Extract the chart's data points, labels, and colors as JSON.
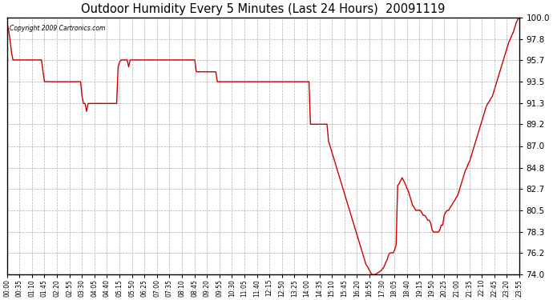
{
  "title": "Outdoor Humidity Every 5 Minutes (Last 24 Hours)  20091119",
  "copyright": "Copyright 2009 Cartronics.com",
  "line_color": "#cc0000",
  "background_color": "#ffffff",
  "grid_color": "#aaaaaa",
  "ylim": [
    74.0,
    100.0
  ],
  "yticks": [
    74.0,
    76.2,
    78.3,
    80.5,
    82.7,
    84.8,
    87.0,
    89.2,
    91.3,
    93.5,
    95.7,
    97.8,
    100.0
  ],
  "xtick_labels": [
    "00:00",
    "00:35",
    "01:10",
    "01:45",
    "02:20",
    "02:55",
    "03:30",
    "04:05",
    "04:40",
    "05:15",
    "05:50",
    "06:25",
    "07:00",
    "07:35",
    "08:10",
    "08:45",
    "09:20",
    "09:55",
    "10:30",
    "11:05",
    "11:40",
    "12:15",
    "12:50",
    "13:25",
    "14:00",
    "14:35",
    "15:10",
    "15:45",
    "16:20",
    "16:55",
    "17:30",
    "18:05",
    "18:40",
    "19:15",
    "19:50",
    "20:25",
    "21:00",
    "21:35",
    "22:10",
    "22:45",
    "23:20",
    "23:55"
  ],
  "humidity_data": [
    99.5,
    98.8,
    97.8,
    96.5,
    95.7,
    95.7,
    95.7,
    95.7,
    95.7,
    95.7,
    95.7,
    95.7,
    95.7,
    95.7,
    95.7,
    95.7,
    95.7,
    95.7,
    95.7,
    95.7,
    95.7,
    95.7,
    95.7,
    95.7,
    94.5,
    93.5,
    93.5,
    93.5,
    93.5,
    93.5,
    93.5,
    93.5,
    93.5,
    93.5,
    93.5,
    93.5,
    93.5,
    93.5,
    93.5,
    93.5,
    93.5,
    93.5,
    93.5,
    93.5,
    93.5,
    93.5,
    93.5,
    93.5,
    93.5,
    93.5,
    92.0,
    91.3,
    91.3,
    90.5,
    91.3,
    91.3,
    91.3,
    91.3,
    91.3,
    91.3,
    91.3,
    91.3,
    91.3,
    91.3,
    91.3,
    91.3,
    91.3,
    91.3,
    91.3,
    91.3,
    91.3,
    91.3,
    91.3,
    91.3,
    95.0,
    95.5,
    95.7,
    95.7,
    95.7,
    95.7,
    95.7,
    95.0,
    95.7,
    95.7,
    95.7,
    95.7,
    95.7,
    95.7,
    95.7,
    95.7,
    95.7,
    95.7,
    95.7,
    95.7,
    95.7,
    95.7,
    95.7,
    95.7,
    95.7,
    95.7,
    95.7,
    95.7,
    95.7,
    95.7,
    95.7,
    95.7,
    95.7,
    95.7,
    95.7,
    95.7,
    95.7,
    95.7,
    95.7,
    95.7,
    95.7,
    95.7,
    95.7,
    95.7,
    95.7,
    95.7,
    95.7,
    95.7,
    95.7,
    95.7,
    95.7,
    95.7,
    94.5,
    94.5,
    94.5,
    94.5,
    94.5,
    94.5,
    94.5,
    94.5,
    94.5,
    94.5,
    94.5,
    94.5,
    94.5,
    94.5,
    93.5,
    93.5,
    93.5,
    93.5,
    93.5,
    93.5,
    93.5,
    93.5,
    93.5,
    93.5,
    93.5,
    93.5,
    93.5,
    93.5,
    93.5,
    93.5,
    93.5,
    93.5,
    93.5,
    93.5,
    93.5,
    93.5,
    93.5,
    93.5,
    93.5,
    93.5,
    93.5,
    93.5,
    93.5,
    93.5,
    93.5,
    93.5,
    93.5,
    93.5,
    93.5,
    93.5,
    93.5,
    93.5,
    93.5,
    93.5,
    93.5,
    93.5,
    93.5,
    93.5,
    93.5,
    93.5,
    93.5,
    93.5,
    93.5,
    93.5,
    93.5,
    93.5,
    93.5,
    93.5,
    93.5,
    93.5,
    93.5,
    93.5,
    93.5,
    93.5,
    93.5,
    93.5,
    89.2,
    89.2,
    89.2,
    89.2,
    89.2,
    89.2,
    89.2,
    89.2,
    89.2,
    89.2,
    89.2,
    89.2,
    87.5,
    87.0,
    86.5,
    86.0,
    85.5,
    85.0,
    84.5,
    84.0,
    83.5,
    83.0,
    82.5,
    82.0,
    81.5,
    81.0,
    80.5,
    80.0,
    79.5,
    79.0,
    78.5,
    78.0,
    77.5,
    77.0,
    76.5,
    76.0,
    75.5,
    75.0,
    74.8,
    74.5,
    74.2,
    74.0,
    74.0,
    74.0,
    74.1,
    74.2,
    74.3,
    74.4,
    74.6,
    74.8,
    75.2,
    75.5,
    76.0,
    76.2,
    76.2,
    76.2,
    76.5,
    77.0,
    83.0,
    83.2,
    83.5,
    83.8,
    83.5,
    83.2,
    82.8,
    82.5,
    82.0,
    81.5,
    81.0,
    80.8,
    80.5,
    80.5,
    80.5,
    80.5,
    80.3,
    80.0,
    80.0,
    79.8,
    79.5,
    79.5,
    79.2,
    78.5,
    78.3,
    78.3,
    78.3,
    78.3,
    78.5,
    79.0,
    79.0,
    80.0,
    80.3,
    80.5,
    80.5,
    80.8,
    81.0,
    81.3,
    81.5,
    81.8,
    82.0,
    82.5,
    83.0,
    83.5,
    84.0,
    84.5,
    84.8,
    85.2,
    85.5,
    86.0,
    86.5,
    87.0,
    87.5,
    88.0,
    88.5,
    89.0,
    89.5,
    90.0,
    90.5,
    91.0,
    91.3,
    91.5,
    91.8,
    92.0,
    92.5,
    93.0,
    93.5,
    94.0,
    94.5,
    95.0,
    95.5,
    96.0,
    96.5,
    97.0,
    97.5,
    97.8,
    98.2,
    98.5,
    99.0,
    99.5,
    99.8,
    100.0
  ]
}
